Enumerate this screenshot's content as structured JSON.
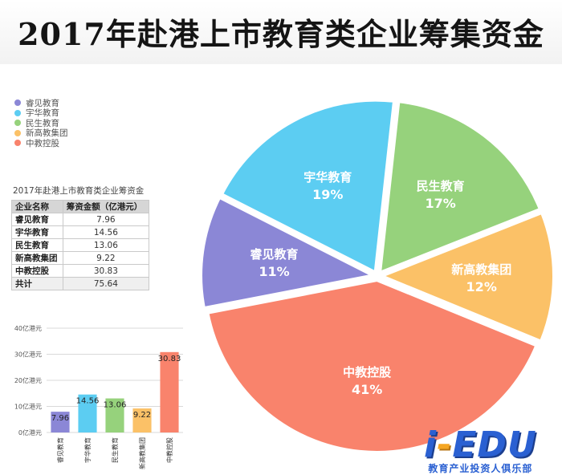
{
  "title": "2017年赴港上市教育类企业筹集资金",
  "legend": [
    {
      "name": "睿见教育",
      "color": "#8b87d6"
    },
    {
      "name": "宇华教育",
      "color": "#5ccdf2"
    },
    {
      "name": "民生教育",
      "color": "#96d27c"
    },
    {
      "name": "新高教集团",
      "color": "#fbc167"
    },
    {
      "name": "中教控股",
      "color": "#f9836c"
    }
  ],
  "table": {
    "caption": "2017年赴港上市教育类企业筹资金",
    "headers": [
      "企业名称",
      "筹资金额（亿港元）"
    ],
    "rows": [
      [
        "睿见教育",
        "7.96"
      ],
      [
        "宇华教育",
        "14.56"
      ],
      [
        "民生教育",
        "13.06"
      ],
      [
        "新高教集团",
        "9.22"
      ],
      [
        "中教控股",
        "30.83"
      ],
      [
        "共计",
        "75.64"
      ]
    ]
  },
  "chart_data": [
    {
      "type": "pie",
      "categories": [
        "睿见教育",
        "宇华教育",
        "民生教育",
        "新高教集团",
        "中教控股"
      ],
      "values": [
        7.96,
        14.56,
        13.06,
        9.22,
        30.83
      ],
      "labels": [
        "11%",
        "19%",
        "17%",
        "12%",
        "41%"
      ],
      "colors": [
        "#8b87d6",
        "#5ccdf2",
        "#96d27c",
        "#fbc167",
        "#f9836c"
      ]
    },
    {
      "type": "bar",
      "categories": [
        "睿见教育",
        "宇华教育",
        "民生教育",
        "新高教集团",
        "中教控股"
      ],
      "values": [
        7.96,
        14.56,
        13.06,
        9.22,
        30.83
      ],
      "colors": [
        "#8b87d6",
        "#5ccdf2",
        "#96d27c",
        "#fbc167",
        "#f9836c"
      ],
      "yticks": [
        "0亿港元",
        "10亿港元",
        "20亿港元",
        "30亿港元",
        "40亿港元"
      ],
      "ylim": [
        0,
        40
      ],
      "grid": true
    }
  ],
  "logo": {
    "main_a": "i",
    "main_b": "-",
    "main_c": "EDU",
    "subtitle": "教育产业投资人俱乐部"
  }
}
